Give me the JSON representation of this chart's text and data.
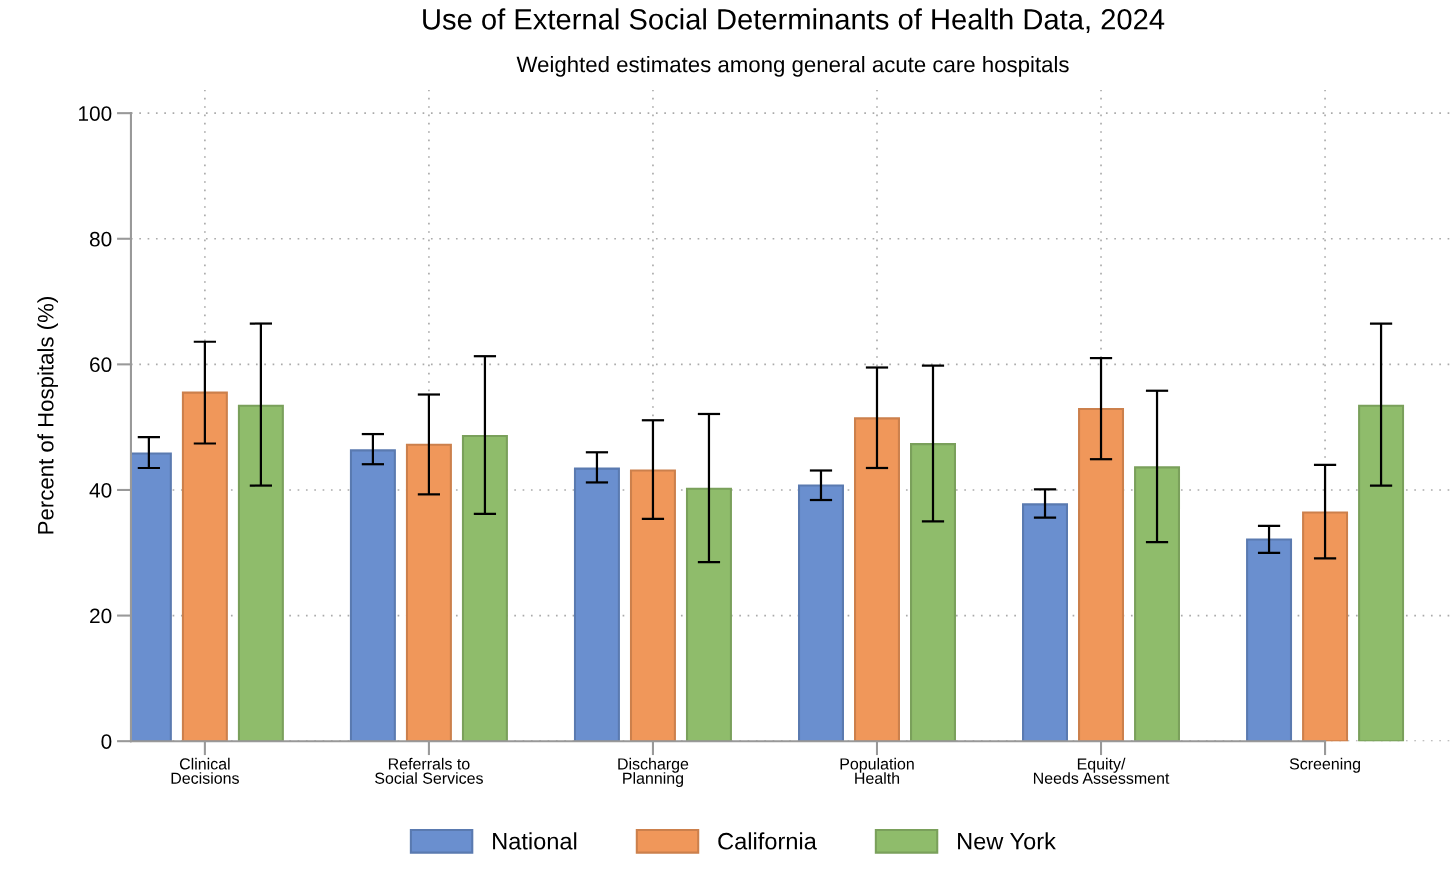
{
  "chart_data": {
    "type": "bar",
    "title": "Use of External Social Determinants of Health Data, 2024",
    "subtitle": "Weighted estimates among general acute care hospitals",
    "ylabel": "Percent of Hospitals (%)",
    "categories": [
      "Clinical\nDecisions",
      "Referrals to\nSocial Services",
      "Discharge\nPlanning",
      "Population\nHealth",
      "Equity/\nNeeds Assessment",
      "Screening"
    ],
    "series": [
      {
        "name": "National",
        "color": "#6a8fcf",
        "values": [
          45.8,
          46.3,
          43.4,
          40.7,
          37.7,
          32.1
        ],
        "errors": [
          [
            43.5,
            48.4
          ],
          [
            44.1,
            48.9
          ],
          [
            41.2,
            46.0
          ],
          [
            38.4,
            43.1
          ],
          [
            35.6,
            40.1
          ],
          [
            30.0,
            34.3
          ]
        ]
      },
      {
        "name": "California",
        "color": "#f0975a",
        "values": [
          55.5,
          47.2,
          43.1,
          51.4,
          52.9,
          36.4
        ],
        "errors": [
          [
            47.4,
            63.6
          ],
          [
            39.3,
            55.2
          ],
          [
            35.4,
            51.1
          ],
          [
            43.5,
            59.5
          ],
          [
            44.9,
            61.0
          ],
          [
            29.1,
            44.0
          ]
        ]
      },
      {
        "name": "New York",
        "color": "#8fbc6b",
        "values": [
          53.4,
          48.6,
          40.2,
          47.3,
          43.6,
          53.4
        ],
        "errors": [
          [
            40.7,
            66.5
          ],
          [
            36.2,
            61.3
          ],
          [
            28.5,
            52.1
          ],
          [
            35.0,
            59.8
          ],
          [
            31.7,
            55.8
          ],
          [
            40.7,
            66.5
          ]
        ]
      }
    ],
    "ylim": [
      0,
      103.7
    ],
    "yticks": [
      0,
      20,
      40,
      60,
      80,
      100
    ],
    "grid": true,
    "legend": "bottom"
  }
}
